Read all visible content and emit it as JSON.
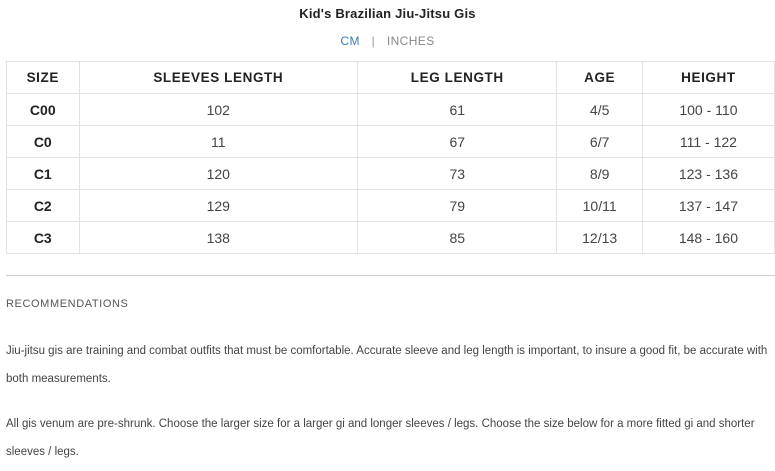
{
  "title": "Kid's Brazilian Jiu-Jitsu Gis",
  "units": {
    "cm": "CM",
    "separator": "|",
    "inches": "INCHES"
  },
  "table": {
    "headers": [
      "SIZE",
      "SLEEVES LENGTH",
      "LEG LENGTH",
      "AGE",
      "HEIGHT"
    ],
    "rows": [
      [
        "C00",
        "102",
        "61",
        "4/5",
        "100 - 110"
      ],
      [
        "C0",
        "11",
        "67",
        "6/7",
        "111 - 122"
      ],
      [
        "C1",
        "120",
        "73",
        "8/9",
        "123 - 136"
      ],
      [
        "C2",
        "129",
        "79",
        "10/11",
        "137 - 147"
      ],
      [
        "C3",
        "138",
        "85",
        "12/13",
        "148 - 160"
      ]
    ]
  },
  "recommendations": {
    "heading": "RECOMMENDATIONS",
    "paragraph_1": "Jiu-jitsu gis are training and combat outfits that must be comfortable. Accurate sleeve and leg length is important, to insure a good fit, be accurate with both measurements.",
    "paragraph_2": "All gis venum are pre-shrunk. Choose the larger size for a larger gi and longer sleeves / legs. Choose the size below for a more fitted gi and shorter sleeves / legs."
  },
  "colors": {
    "active_unit": "#3a7bbf",
    "inactive_unit": "#888888",
    "border": "#e2e2e2"
  }
}
